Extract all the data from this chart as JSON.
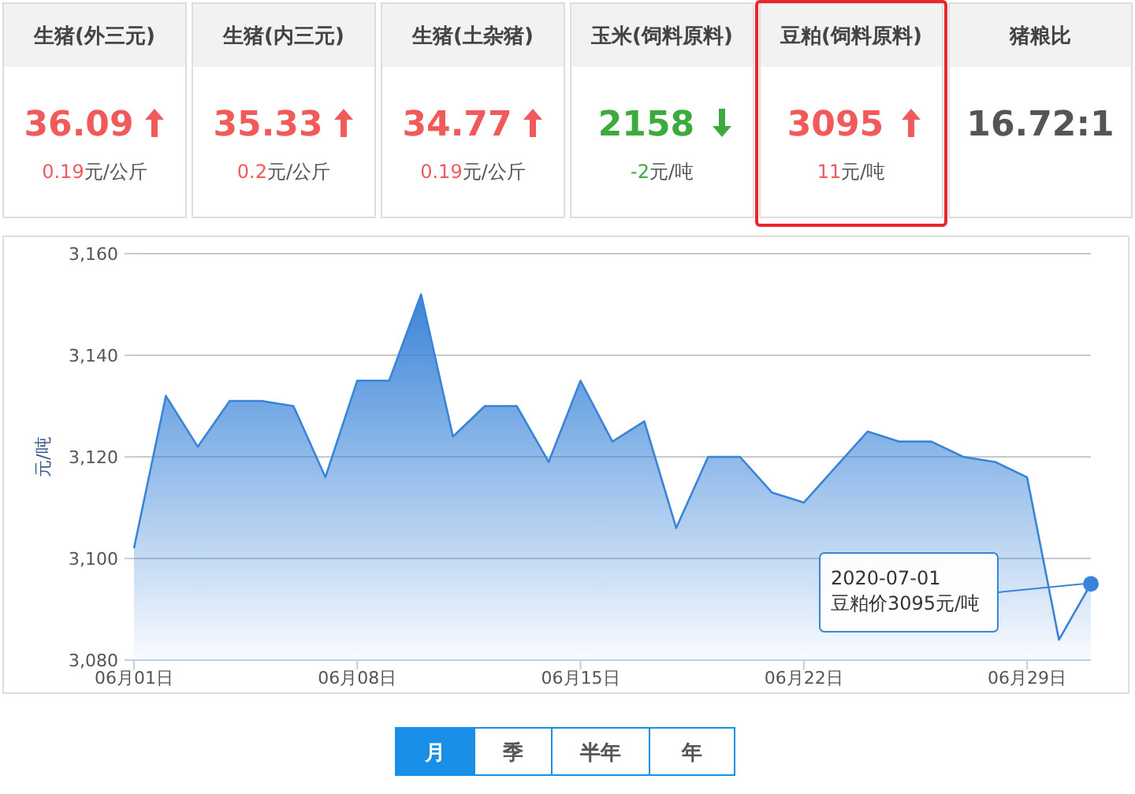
{
  "chart_data": [
    {
      "type": "other",
      "title": "生猪(外三元)",
      "annotations": [
        "36.09",
        "0.19元/公斤"
      ]
    },
    {
      "type": "other",
      "title": "生猪(内三元)",
      "annotations": [
        "35.33",
        "0.2元/公斤"
      ]
    },
    {
      "type": "other",
      "title": "生猪(土杂猪)",
      "annotations": [
        "34.77",
        "0.19元/公斤"
      ]
    },
    {
      "type": "other",
      "title": "玉米(饲料原料)",
      "annotations": [
        "2158",
        "-2元/吨"
      ]
    },
    {
      "type": "other",
      "title": "豆粕(饲料原料)",
      "annotations": [
        "3095",
        "11元/吨"
      ]
    },
    {
      "type": "other",
      "title": "猪粮比",
      "annotations": [
        "16.72:1"
      ]
    },
    {
      "type": "area",
      "ylabel": "元/吨",
      "color": "#3a84d8",
      "grid": "y",
      "marker": "none",
      "x": [
        "2020-06-01",
        "2020-06-02",
        "2020-06-03",
        "2020-06-04",
        "2020-06-05",
        "2020-06-06",
        "2020-06-07",
        "2020-06-08",
        "2020-06-09",
        "2020-06-10",
        "2020-06-11",
        "2020-06-12",
        "2020-06-13",
        "2020-06-14",
        "2020-06-15",
        "2020-06-16",
        "2020-06-17",
        "2020-06-18",
        "2020-06-19",
        "2020-06-20",
        "2020-06-21",
        "2020-06-22",
        "2020-06-23",
        "2020-06-24",
        "2020-06-25",
        "2020-06-26",
        "2020-06-27",
        "2020-06-28",
        "2020-06-29",
        "2020-06-30",
        "2020-07-01"
      ],
      "values": [
        3102,
        3132,
        3122,
        3131,
        3131,
        3130,
        3116,
        3135,
        3135,
        3152,
        3124,
        3130,
        3130,
        3119,
        3135,
        3123,
        3127,
        3106,
        3120,
        3120,
        3113,
        3111,
        3118,
        3125,
        3123,
        3123,
        3120,
        3119,
        3116,
        3084,
        3095
      ],
      "xlim": [
        "2020-06-01",
        "2020-07-01"
      ],
      "xticks": [
        {
          "value": "2020-06-01",
          "label": "06月01日"
        },
        {
          "value": "2020-06-08",
          "label": "06月08日"
        },
        {
          "value": "2020-06-15",
          "label": "06月15日"
        },
        {
          "value": "2020-06-22",
          "label": "06月22日"
        },
        {
          "value": "2020-06-29",
          "label": "06月29日"
        }
      ],
      "ylim": [
        3080,
        3160
      ],
      "yticks": [
        {
          "value": 3080,
          "label": "3,080"
        },
        {
          "value": 3100,
          "label": "3,100"
        },
        {
          "value": 3120,
          "label": "3,120"
        },
        {
          "value": 3140,
          "label": "3,140"
        },
        {
          "value": 3160,
          "label": "3,160"
        }
      ],
      "annotations": [
        {
          "text": "2020-07-01\n豆粕价3095元/吨",
          "x": "2020-07-01",
          "y": 3095
        },
        "月",
        "季",
        "半年",
        "年"
      ]
    }
  ]
}
